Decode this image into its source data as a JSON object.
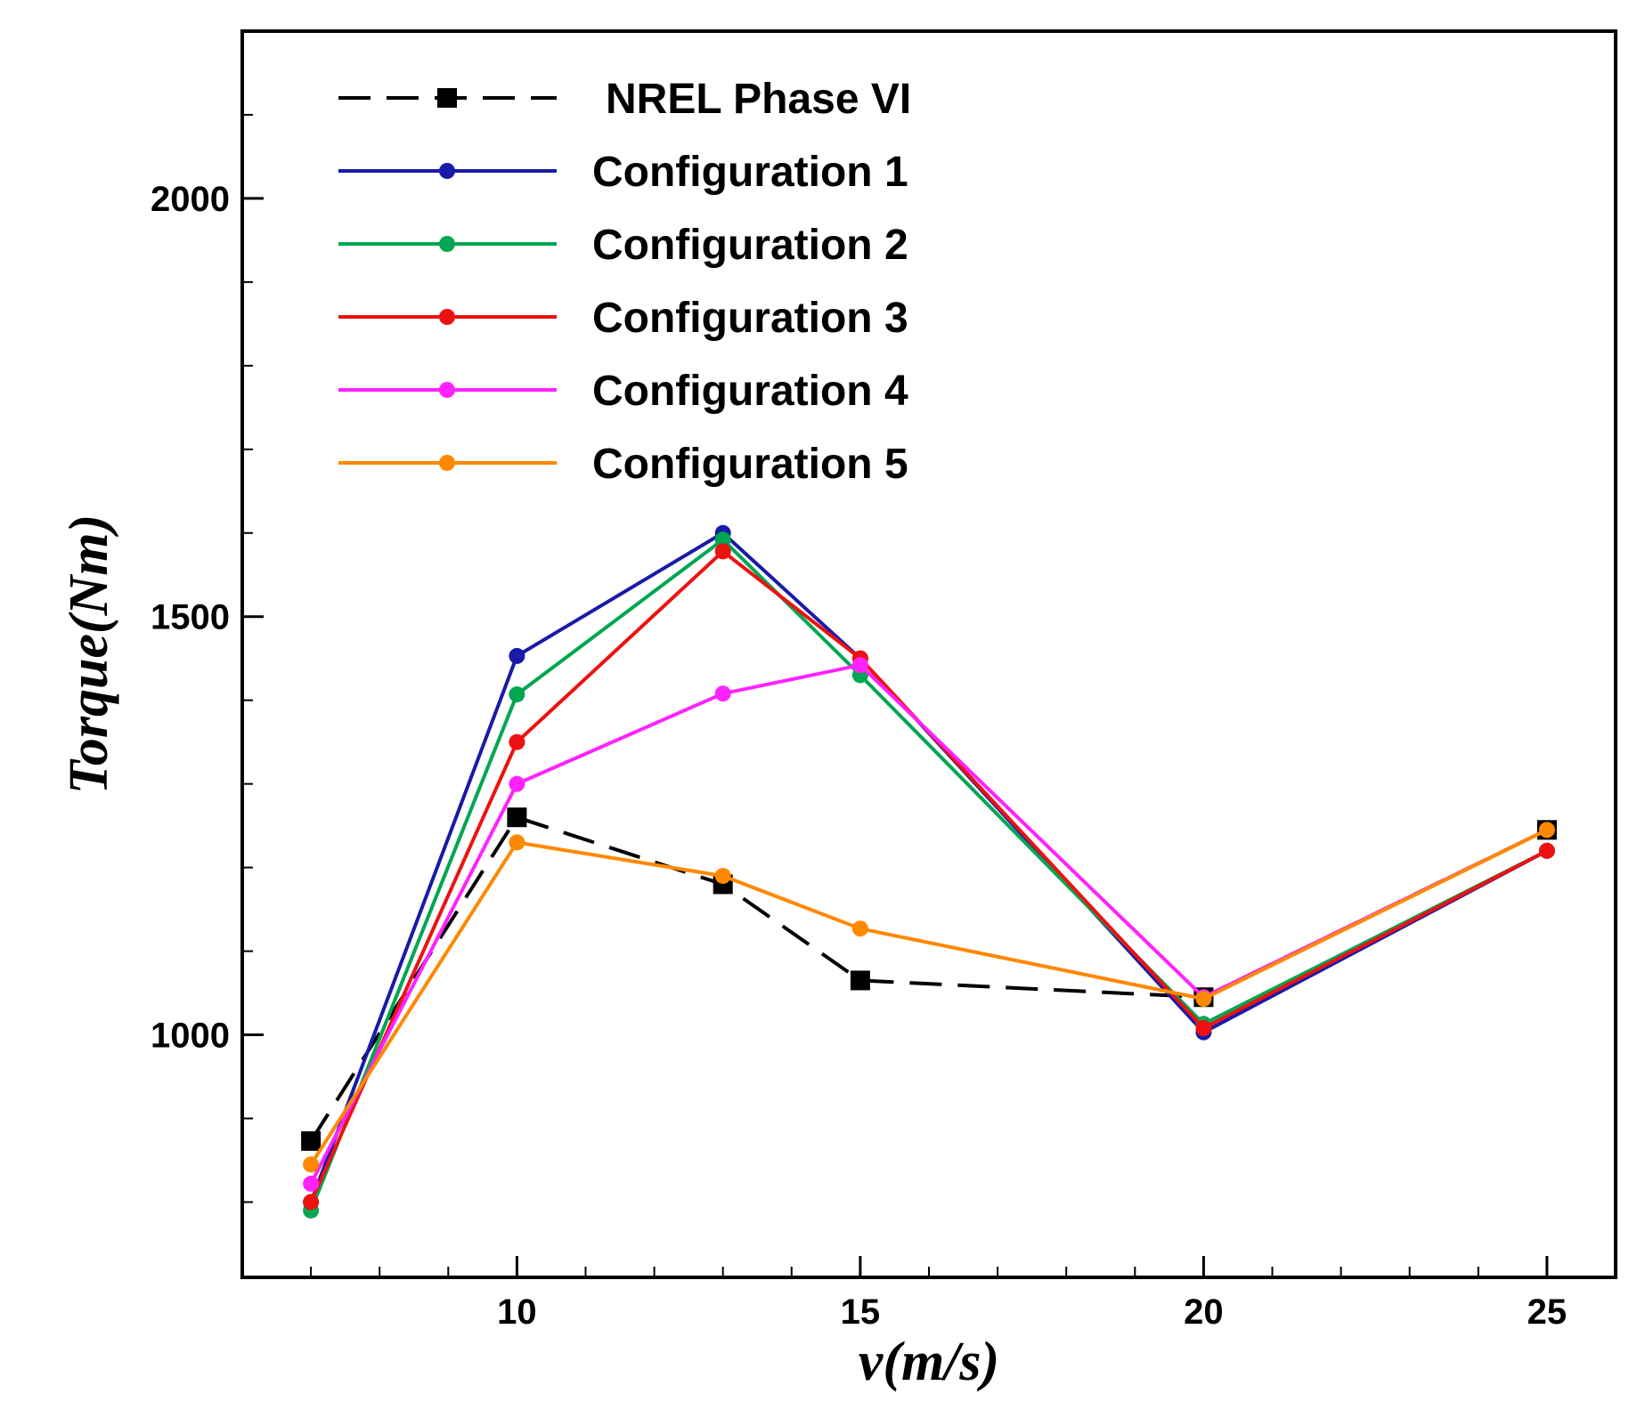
{
  "chart_data": {
    "type": "line",
    "title": "",
    "xlabel": "v(m/s)",
    "ylabel": "Torque(Nm)",
    "xlim": [
      6,
      26
    ],
    "ylim": [
      710,
      2200
    ],
    "x_ticks": [
      10,
      15,
      20,
      25
    ],
    "y_ticks": [
      1000,
      1500,
      2000
    ],
    "grid": false,
    "legend_position": "top-left",
    "x": [
      7,
      10,
      13,
      15,
      20,
      25
    ],
    "series": [
      {
        "name": "NREL Phase VI",
        "color": "#000000",
        "dashed": true,
        "marker": "square",
        "values": [
          873,
          1260,
          1180,
          1065,
          1045,
          1245
        ]
      },
      {
        "name": "Configuration 1",
        "color": "#1a1aa8",
        "dashed": false,
        "marker": "circle",
        "values": [
          800,
          1453,
          1600,
          1450,
          1003,
          1220
        ]
      },
      {
        "name": "Configuration 2",
        "color": "#00a651",
        "dashed": false,
        "marker": "circle",
        "values": [
          790,
          1407,
          1592,
          1430,
          1013,
          1220
        ]
      },
      {
        "name": "Configuration 3",
        "color": "#ee1111",
        "dashed": false,
        "marker": "circle",
        "values": [
          800,
          1350,
          1578,
          1450,
          1008,
          1220
        ]
      },
      {
        "name": "Configuration 4",
        "color": "#ff22ff",
        "dashed": false,
        "marker": "circle",
        "values": [
          822,
          1300,
          1408,
          1442,
          1045,
          1245
        ]
      },
      {
        "name": "Configuration 5",
        "color": "#ff8800",
        "dashed": false,
        "marker": "circle",
        "values": [
          845,
          1230,
          1190,
          1127,
          1043,
          1245
        ]
      }
    ]
  }
}
